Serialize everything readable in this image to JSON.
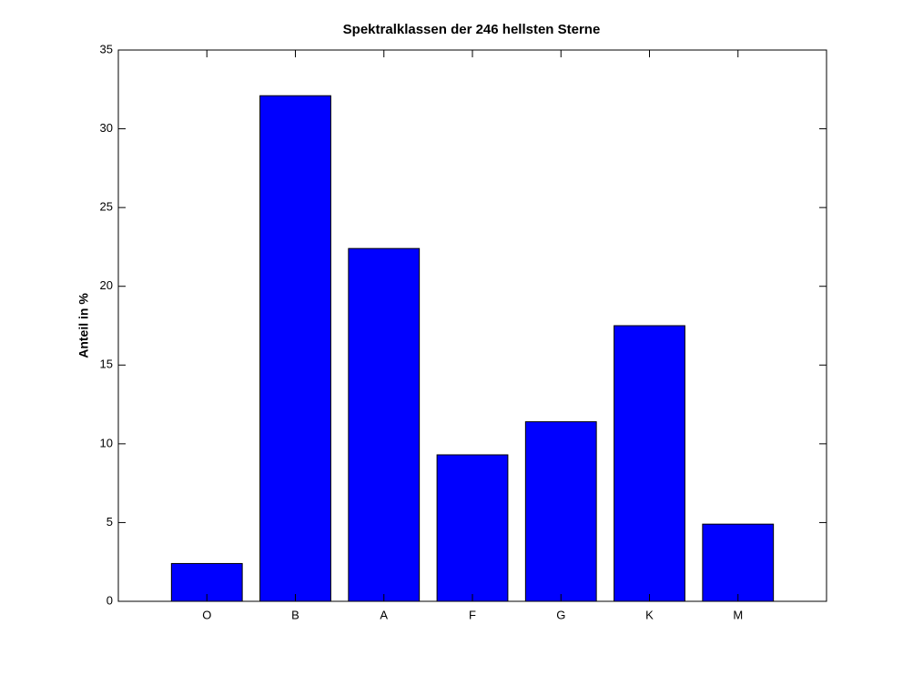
{
  "chart_data": {
    "type": "bar",
    "title": "Spektralklassen der 246 hellsten Sterne",
    "y_label": "Anteil in %",
    "categories": [
      "O",
      "B",
      "A",
      "F",
      "G",
      "K",
      "M"
    ],
    "values": [
      2.4,
      32.1,
      22.4,
      9.3,
      11.4,
      17.5,
      4.9
    ],
    "color": "#0000ff",
    "ylim": [
      0,
      35
    ],
    "yticks": [
      0,
      5,
      10,
      15,
      20,
      25,
      30,
      35
    ],
    "grid": false
  }
}
